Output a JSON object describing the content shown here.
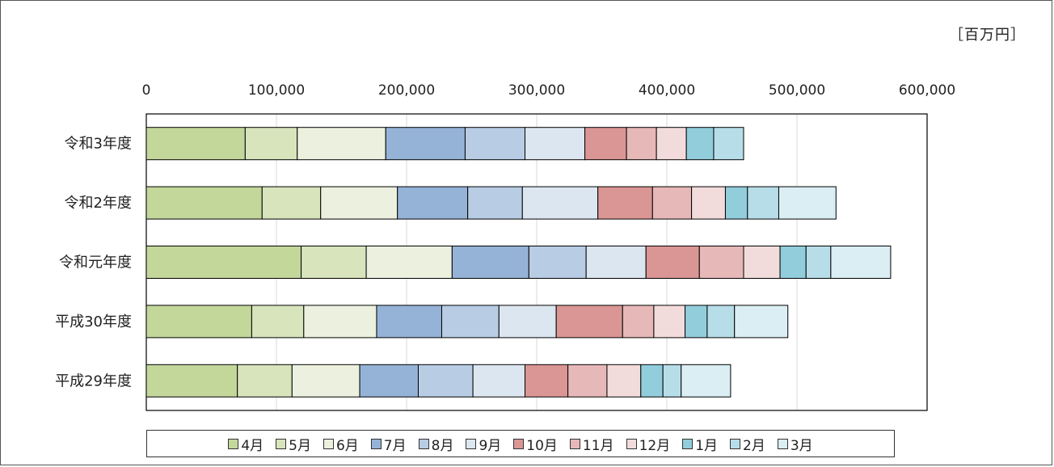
{
  "unit_label": "［百万円］",
  "chart_data": {
    "type": "bar",
    "orientation": "horizontal",
    "stacked": true,
    "categories": [
      "令和3年度",
      "令和2年度",
      "令和元年度",
      "平成30年度",
      "平成29年度"
    ],
    "x_ticks": [
      "0",
      "100,000",
      "200,000",
      "300,000",
      "400,000",
      "500,000",
      "600,000"
    ],
    "xlim": [
      0,
      600000
    ],
    "grid": true,
    "legend_position": "bottom",
    "series": [
      {
        "name": "4月",
        "color": "#c4d79b",
        "values": [
          76000,
          89000,
          119000,
          81000,
          70000
        ]
      },
      {
        "name": "5月",
        "color": "#d8e4bc",
        "values": [
          40000,
          45000,
          50000,
          40000,
          42000
        ]
      },
      {
        "name": "6月",
        "color": "#ebf1de",
        "values": [
          68000,
          59000,
          66000,
          56000,
          52000
        ]
      },
      {
        "name": "7月",
        "color": "#95b3d7",
        "values": [
          61000,
          54000,
          59000,
          50000,
          45000
        ]
      },
      {
        "name": "8月",
        "color": "#b8cce4",
        "values": [
          46000,
          42000,
          44000,
          44000,
          42000
        ]
      },
      {
        "name": "9月",
        "color": "#dce6f1",
        "values": [
          46000,
          58000,
          46000,
          44000,
          40000
        ]
      },
      {
        "name": "10月",
        "color": "#da9694",
        "values": [
          32000,
          42000,
          41000,
          51000,
          33000
        ]
      },
      {
        "name": "11月",
        "color": "#e6b8b7",
        "values": [
          23000,
          30000,
          34000,
          24000,
          30000
        ]
      },
      {
        "name": "12月",
        "color": "#f2dcdb",
        "values": [
          23000,
          26000,
          28000,
          24000,
          26000
        ]
      },
      {
        "name": "1月",
        "color": "#92cddc",
        "values": [
          21000,
          17000,
          20000,
          17000,
          17000
        ]
      },
      {
        "name": "2月",
        "color": "#b7dee8",
        "values": [
          23000,
          24000,
          19000,
          21000,
          14000
        ]
      },
      {
        "name": "3月",
        "color": "#daeef3",
        "values": [
          0,
          44000,
          46000,
          41000,
          38000
        ]
      }
    ]
  }
}
